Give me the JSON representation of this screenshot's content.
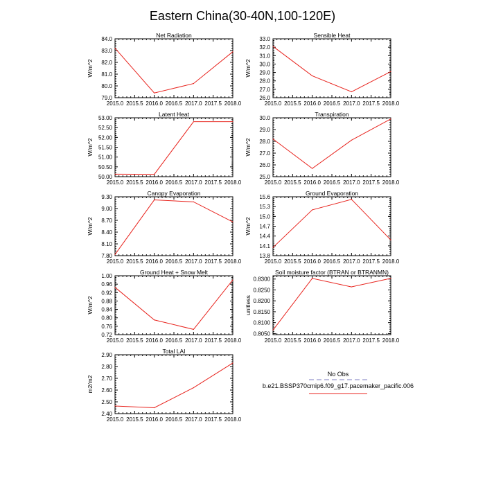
{
  "title": "Eastern China(30-40N,100-120E)",
  "colors": {
    "obs": "#a9a9d6",
    "model": "#e8231d",
    "axis": "#000000"
  },
  "legend": {
    "obs_label": "No Obs",
    "model_label": "b.e21.BSSP370cmip6.f09_g17.pacemaker_pacific.006"
  },
  "chart_data": [
    {
      "type": "line",
      "title": "Net Radiation",
      "ylabel": "W/m^2",
      "x": [
        2015,
        2016,
        2017,
        2018
      ],
      "values": [
        83.2,
        79.4,
        80.2,
        82.9
      ],
      "xlim": [
        2015,
        2018
      ],
      "ylim": [
        79.0,
        84.0
      ],
      "xticks": [
        "2015.0",
        "2015.5",
        "2016.0",
        "2016.5",
        "2017.0",
        "2017.5",
        "2018.0"
      ],
      "yticks": [
        "79.0",
        "80.0",
        "81.0",
        "82.0",
        "83.0",
        "84.0"
      ]
    },
    {
      "type": "line",
      "title": "Sensible Heat",
      "ylabel": "W/m^2",
      "x": [
        2015,
        2016,
        2017,
        2018
      ],
      "values": [
        32.1,
        28.6,
        26.7,
        29.1
      ],
      "xlim": [
        2015,
        2018
      ],
      "ylim": [
        26.0,
        33.0
      ],
      "xticks": [
        "2015.0",
        "2015.5",
        "2016.0",
        "2016.5",
        "2017.0",
        "2017.5",
        "2018.0"
      ],
      "yticks": [
        "26.0",
        "27.0",
        "28.0",
        "29.0",
        "30.0",
        "31.0",
        "32.0",
        "33.0"
      ]
    },
    {
      "type": "line",
      "title": "Latent Heat",
      "ylabel": "W/m^2",
      "x": [
        2015,
        2016,
        2017,
        2018
      ],
      "values": [
        50.13,
        50.12,
        52.8,
        52.8
      ],
      "xlim": [
        2015,
        2018
      ],
      "ylim": [
        50.0,
        53.0
      ],
      "xticks": [
        "2015.0",
        "2015.5",
        "2016.0",
        "2016.5",
        "2017.0",
        "2017.5",
        "2018.0"
      ],
      "yticks": [
        "50.00",
        "50.50",
        "51.00",
        "51.50",
        "52.00",
        "52.50",
        "53.00"
      ]
    },
    {
      "type": "line",
      "title": "Transpiration",
      "ylabel": "W/m^2",
      "x": [
        2015,
        2016,
        2017,
        2018
      ],
      "values": [
        28.2,
        25.7,
        28.1,
        29.9
      ],
      "xlim": [
        2015,
        2018
      ],
      "ylim": [
        25.0,
        30.0
      ],
      "xticks": [
        "2015.0",
        "2015.5",
        "2016.0",
        "2016.5",
        "2017.0",
        "2017.5",
        "2018.0"
      ],
      "yticks": [
        "25.0",
        "26.0",
        "27.0",
        "28.0",
        "29.0",
        "30.0"
      ]
    },
    {
      "type": "line",
      "title": "Canopy Evaporation",
      "ylabel": "W/m^2",
      "x": [
        2015,
        2016,
        2017,
        2018
      ],
      "values": [
        7.83,
        9.22,
        9.17,
        8.66
      ],
      "xlim": [
        2015,
        2018
      ],
      "ylim": [
        7.8,
        9.3
      ],
      "xticks": [
        "2015.0",
        "2015.5",
        "2016.0",
        "2016.5",
        "2017.0",
        "2017.5",
        "2018.0"
      ],
      "yticks": [
        "7.80",
        "8.10",
        "8.40",
        "8.70",
        "9.00",
        "9.30"
      ]
    },
    {
      "type": "line",
      "title": "Ground Evaporation",
      "ylabel": "W/m^2",
      "x": [
        2015,
        2016,
        2017,
        2018
      ],
      "values": [
        14.05,
        15.2,
        15.52,
        14.28
      ],
      "xlim": [
        2015,
        2018
      ],
      "ylim": [
        13.8,
        15.6
      ],
      "xticks": [
        "2015.0",
        "2015.5",
        "2016.0",
        "2016.5",
        "2017.0",
        "2017.5",
        "2018.0"
      ],
      "yticks": [
        "13.8",
        "14.1",
        "14.4",
        "14.7",
        "15.0",
        "15.3",
        "15.6"
      ]
    },
    {
      "type": "line",
      "title": "Ground Heat + Snow Melt",
      "ylabel": "W/m^2",
      "x": [
        2015,
        2016,
        2017,
        2018
      ],
      "values": [
        0.945,
        0.79,
        0.745,
        0.98
      ],
      "xlim": [
        2015,
        2018
      ],
      "ylim": [
        0.72,
        1.0
      ],
      "xticks": [
        "2015.0",
        "2015.5",
        "2016.0",
        "2016.5",
        "2017.0",
        "2017.5",
        "2018.0"
      ],
      "yticks": [
        "0.72",
        "0.76",
        "0.80",
        "0.84",
        "0.88",
        "0.92",
        "0.96",
        "1.00"
      ]
    },
    {
      "type": "line",
      "title": "Soil moisture factor (BTRAN or BTRANMN)",
      "ylabel": "unitless",
      "x": [
        2015,
        2016,
        2017,
        2018
      ],
      "values": [
        0.8066,
        0.8303,
        0.8264,
        0.8303
      ],
      "xlim": [
        2015,
        2018
      ],
      "ylim": [
        0.8045,
        0.8315
      ],
      "xticks": [
        "2015.0",
        "2015.5",
        "2016.0",
        "2016.5",
        "2017.0",
        "2017.5",
        "2018.0"
      ],
      "yticks": [
        "0.8050",
        "0.8100",
        "0.8150",
        "0.8200",
        "0.8250",
        "0.8300"
      ]
    },
    {
      "type": "line",
      "title": "Total LAI",
      "ylabel": "m2/m2",
      "x": [
        2015,
        2016,
        2017,
        2018
      ],
      "values": [
        2.465,
        2.45,
        2.62,
        2.83
      ],
      "xlim": [
        2015,
        2018
      ],
      "ylim": [
        2.4,
        2.9
      ],
      "xticks": [
        "2015.0",
        "2015.5",
        "2016.0",
        "2016.5",
        "2017.0",
        "2017.5",
        "2018.0"
      ],
      "yticks": [
        "2.40",
        "2.50",
        "2.60",
        "2.70",
        "2.80",
        "2.90"
      ]
    }
  ]
}
